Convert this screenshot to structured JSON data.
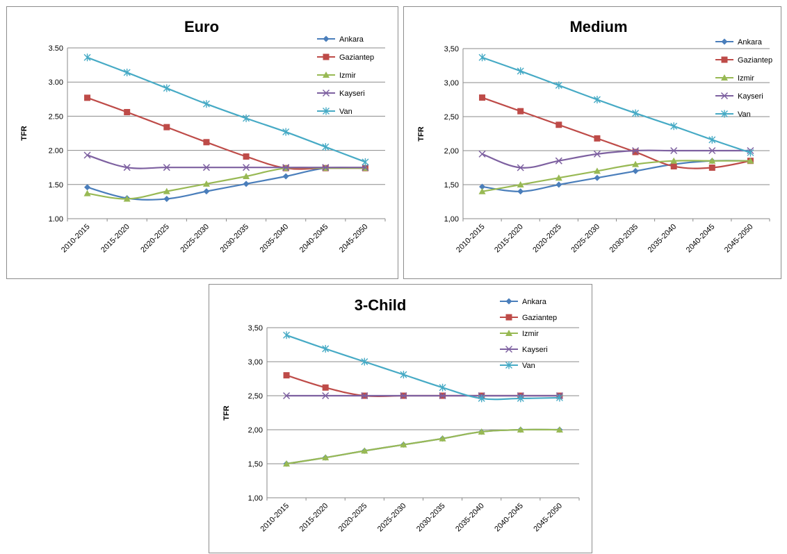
{
  "chart_data": [
    {
      "type": "line",
      "title": "Euro",
      "xlabel": "",
      "ylabel": "TFR",
      "categories": [
        "2010-2015",
        "2015-2020",
        "2020-2025",
        "2025-2030",
        "2030-2035",
        "2035-2040",
        "2040-2045",
        "2045-2050"
      ],
      "yticks": [
        "1.00",
        "1.50",
        "2.00",
        "2.50",
        "3.00",
        "3.50"
      ],
      "ylim": [
        1.0,
        3.5
      ],
      "grid": true,
      "legend_position": "right",
      "series": [
        {
          "name": "Ankara",
          "color": "#4a7ebb",
          "marker": "diamond",
          "values": [
            1.46,
            1.3,
            1.29,
            1.4,
            1.51,
            1.62,
            1.74,
            1.74
          ]
        },
        {
          "name": "Gaziantep",
          "color": "#be4b48",
          "marker": "square",
          "values": [
            2.77,
            2.56,
            2.34,
            2.12,
            1.91,
            1.74,
            1.74,
            1.74
          ]
        },
        {
          "name": "Izmir",
          "color": "#98b954",
          "marker": "triangle",
          "values": [
            1.37,
            1.29,
            1.4,
            1.51,
            1.62,
            1.74,
            1.74,
            1.74
          ]
        },
        {
          "name": "Kayseri",
          "color": "#7d60a0",
          "marker": "x",
          "values": [
            1.93,
            1.75,
            1.75,
            1.75,
            1.75,
            1.75,
            1.75,
            1.75
          ]
        },
        {
          "name": "Van",
          "color": "#46aac5",
          "marker": "star",
          "values": [
            3.36,
            3.14,
            2.91,
            2.68,
            2.47,
            2.27,
            2.05,
            1.83
          ]
        }
      ]
    },
    {
      "type": "line",
      "title": "Medium",
      "xlabel": "",
      "ylabel": "TFR",
      "categories": [
        "2010-2015",
        "2015-2020",
        "2020-2025",
        "2025-2030",
        "2030-2035",
        "2035-2040",
        "2040-2045",
        "2045-2050"
      ],
      "yticks": [
        "1,00",
        "1,50",
        "2,00",
        "2,50",
        "3,00",
        "3,50"
      ],
      "ylim": [
        1.0,
        3.5
      ],
      "grid": true,
      "legend_position": "right",
      "series": [
        {
          "name": "Ankara",
          "color": "#4a7ebb",
          "marker": "diamond",
          "values": [
            1.47,
            1.4,
            1.5,
            1.6,
            1.7,
            1.8,
            1.85,
            1.85
          ]
        },
        {
          "name": "Gaziantep",
          "color": "#be4b48",
          "marker": "square",
          "values": [
            2.78,
            2.58,
            2.38,
            2.18,
            1.98,
            1.77,
            1.75,
            1.85
          ]
        },
        {
          "name": "Izmir",
          "color": "#98b954",
          "marker": "triangle",
          "values": [
            1.4,
            1.5,
            1.6,
            1.7,
            1.8,
            1.85,
            1.85,
            1.85
          ]
        },
        {
          "name": "Kayseri",
          "color": "#7d60a0",
          "marker": "x",
          "values": [
            1.95,
            1.75,
            1.85,
            1.95,
            2.0,
            2.0,
            2.0,
            2.0
          ]
        },
        {
          "name": "Van",
          "color": "#46aac5",
          "marker": "star",
          "values": [
            3.37,
            3.17,
            2.96,
            2.75,
            2.55,
            2.36,
            2.16,
            1.97
          ]
        }
      ]
    },
    {
      "type": "line",
      "title": "3-Child",
      "xlabel": "",
      "ylabel": "TFR",
      "categories": [
        "2010-2015",
        "2015-2020",
        "2020-2025",
        "2025-2030",
        "2030-2035",
        "2035-2040",
        "2040-2045",
        "2045-2050"
      ],
      "yticks": [
        "1,00",
        "1,50",
        "2,00",
        "2,50",
        "3,00",
        "3,50"
      ],
      "ylim": [
        1.0,
        3.5
      ],
      "grid": true,
      "legend_position": "top-right",
      "series": [
        {
          "name": "Ankara",
          "color": "#4a7ebb",
          "marker": "diamond",
          "values": [
            1.5,
            1.59,
            1.69,
            1.78,
            1.87,
            1.97,
            2.0,
            2.0
          ]
        },
        {
          "name": "Gaziantep",
          "color": "#be4b48",
          "marker": "square",
          "values": [
            2.8,
            2.62,
            2.5,
            2.5,
            2.5,
            2.5,
            2.5,
            2.5
          ]
        },
        {
          "name": "Izmir",
          "color": "#98b954",
          "marker": "triangle",
          "values": [
            1.5,
            1.59,
            1.69,
            1.78,
            1.87,
            1.97,
            2.0,
            2.0
          ]
        },
        {
          "name": "Kayseri",
          "color": "#7d60a0",
          "marker": "x",
          "values": [
            2.5,
            2.5,
            2.5,
            2.5,
            2.5,
            2.5,
            2.5,
            2.5
          ]
        },
        {
          "name": "Van",
          "color": "#46aac5",
          "marker": "star",
          "values": [
            3.39,
            3.19,
            3.0,
            2.81,
            2.62,
            2.46,
            2.46,
            2.47
          ]
        }
      ]
    }
  ]
}
